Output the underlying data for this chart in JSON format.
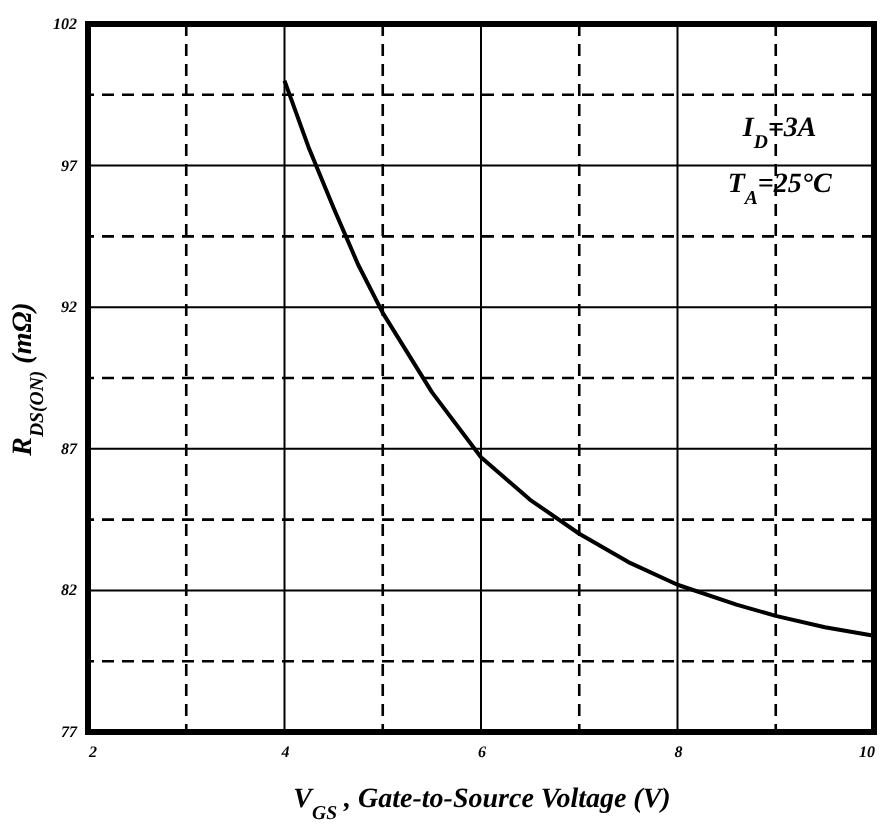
{
  "chart_data": {
    "type": "line",
    "xlabel": "V$_{GS}$ , Gate-to-Source Voltage (V)",
    "ylabel": "R$_{DS(ON)}$ (mΩ)",
    "x": [
      4,
      4.25,
      4.5,
      4.75,
      5,
      5.5,
      6,
      6.5,
      7,
      7.5,
      8,
      8.6,
      9,
      9.5,
      10
    ],
    "series": [
      {
        "color": "#000000",
        "values": [
          100.0,
          97.6,
          95.5,
          93.5,
          91.8,
          89.0,
          86.7,
          85.2,
          84.0,
          83.0,
          82.2,
          81.5,
          81.1,
          80.7,
          80.4
        ]
      }
    ],
    "xlim": [
      2,
      10
    ],
    "xticks": [
      2,
      {
        "value": 3,
        "label": null
      },
      4,
      {
        "value": 5,
        "label": null
      },
      6,
      {
        "value": 7,
        "label": null
      },
      8,
      {
        "value": 9,
        "label": null
      },
      10
    ],
    "ylim": [
      77,
      102
    ],
    "yticks": [
      77,
      {
        "value": 79.5,
        "label": null
      },
      82,
      {
        "value": 84.5,
        "label": null
      },
      87,
      {
        "value": 89.5,
        "label": null
      },
      92,
      {
        "value": 94.5,
        "label": null
      },
      97,
      {
        "value": 99.5,
        "label": null
      },
      102
    ],
    "grid": true,
    "marker": "none",
    "line_style": "solid",
    "annotations": [
      "I$_{D}$=3A",
      "T$_{A}$=25°C"
    ]
  }
}
